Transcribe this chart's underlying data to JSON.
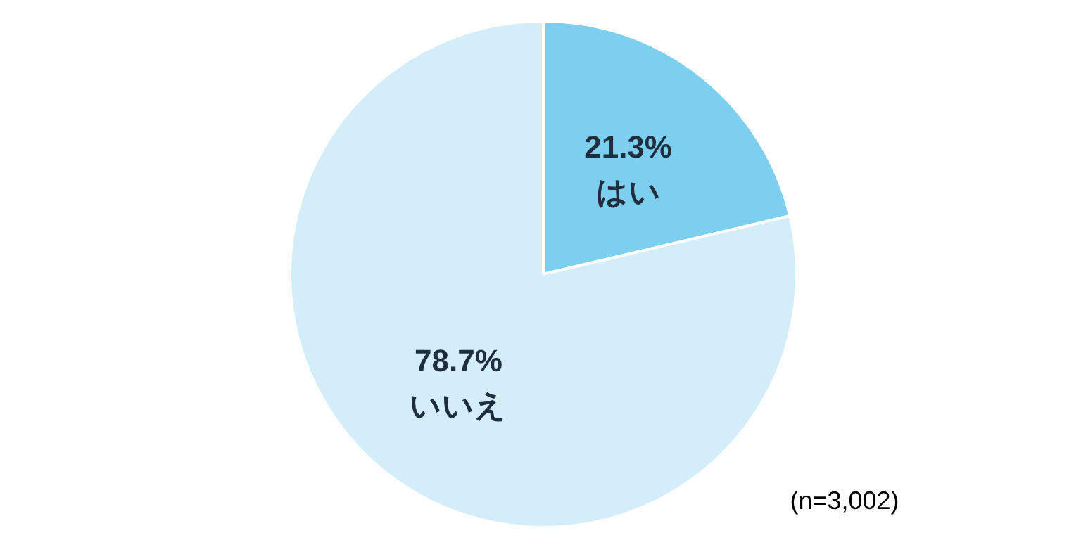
{
  "chart_data": {
    "type": "pie",
    "categories": [
      "はい",
      "いいえ"
    ],
    "values": [
      21.3,
      78.7
    ],
    "value_labels": [
      "21.3%",
      "78.7%"
    ],
    "colors": [
      "#7dcff0",
      "#d3eef9"
    ],
    "annotations": [
      "(n=3,002)"
    ]
  }
}
